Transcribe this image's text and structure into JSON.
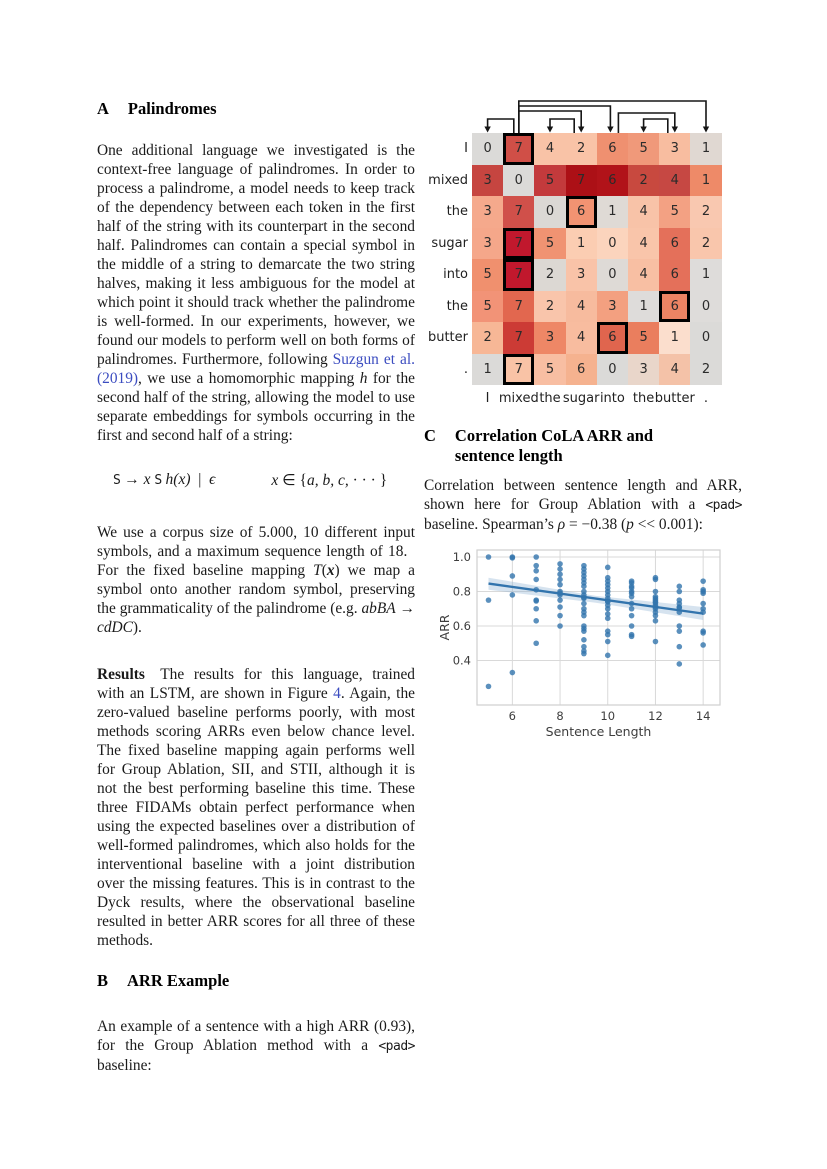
{
  "sections": {
    "a": {
      "label": "A",
      "title": "Palindromes"
    },
    "b": {
      "label": "B",
      "title": "ARR Example"
    },
    "c": {
      "label": "C",
      "title": "Correlation CoLA ARR and sentence length"
    }
  },
  "para_a1": [
    {
      "t": "One additional language we investigated is the context-free language of palindromes. In order to process a palindrome, a model needs to keep track of the dependency between each token in the first half of the string with its counterpart in the second half. Palindromes can contain a special symbol in the middle of a string to demarcate the two string halves, making it less ambiguous for the model at which point it should track whether the palindrome is well-formed. In our experiments, however, we found our models to perform well on both forms of palindromes. Furthermore, following ",
      "s": ""
    },
    {
      "t": "Suzgun et al. (2019)",
      "s": "link"
    },
    {
      "t": ", we use a homomorphic mapping ",
      "s": ""
    },
    {
      "t": "h",
      "s": "it"
    },
    {
      "t": " for the second half of the string, allowing the model to use separate embeddings for symbols occurring in the first and second half of a string:",
      "s": ""
    }
  ],
  "formula": {
    "left": [
      {
        "t": "S",
        "s": "mono"
      },
      {
        "t": " → ",
        "s": ""
      },
      {
        "t": "x",
        "s": "it"
      },
      {
        "t": " ",
        "s": ""
      },
      {
        "t": "S",
        "s": "mono"
      },
      {
        "t": " ",
        "s": ""
      },
      {
        "t": "h(x)",
        "s": "it"
      },
      {
        "t": " | ",
        "s": ""
      },
      {
        "t": "ϵ",
        "s": "it"
      }
    ],
    "right": [
      {
        "t": "x",
        "s": "it"
      },
      {
        "t": " ∈ {",
        "s": ""
      },
      {
        "t": "a, b, c,",
        "s": "it"
      },
      {
        "t": " · · · }",
        "s": ""
      }
    ]
  },
  "para_a2": [
    {
      "t": "We use a corpus size of 5.000, 10 different input symbols, and a maximum sequence length of 18. For the fixed baseline mapping ",
      "s": ""
    },
    {
      "t": "T",
      "s": "it"
    },
    {
      "t": "(",
      "s": ""
    },
    {
      "t": "x",
      "s": "boldit"
    },
    {
      "t": ") we map a symbol onto another random symbol, preserving the grammaticality of the palindrome (e.g. ",
      "s": ""
    },
    {
      "t": "abBA",
      "s": "it"
    },
    {
      "t": " → ",
      "s": ""
    },
    {
      "t": "cdDC",
      "s": "it"
    },
    {
      "t": ").",
      "s": ""
    }
  ],
  "para_results": [
    {
      "t": "Results",
      "s": "bold"
    },
    {
      "t": " The results for this language, trained with an LSTM, are shown in Figure ",
      "s": ""
    },
    {
      "t": "4",
      "s": "link"
    },
    {
      "t": ". Again, the zero-valued baseline performs poorly, with most methods scoring ARRs even below chance level. The fixed baseline mapping again performs well for Group Ablation, SII, and STII, although it is not the best performing baseline this time. These three FIDAMs obtain perfect performance when using the expected baselines over a distribution of well-formed palindromes, which also holds for the interventional baseline with a joint distribution over the missing features. This is in contrast to the Dyck results, where the observational baseline resulted in better ARR scores for all three of these methods.",
      "s": ""
    }
  ],
  "para_b1": [
    {
      "t": "An example of a sentence with a high ARR (0.93), for the Group Ablation method with a ",
      "s": ""
    },
    {
      "t": "<pad>",
      "s": "mono"
    },
    {
      "t": " baseline:",
      "s": ""
    }
  ],
  "para_c1": [
    {
      "t": "Correlation between sentence length and ARR, shown here for Group Ablation with a ",
      "s": ""
    },
    {
      "t": "<pad>",
      "s": "mono"
    },
    {
      "t": " baseline. Spearman’s ",
      "s": ""
    },
    {
      "t": "ρ",
      "s": "it"
    },
    {
      "t": " = −0.38 (",
      "s": ""
    },
    {
      "t": "p",
      "s": "it"
    },
    {
      "t": " << 0.001):",
      "s": ""
    }
  ],
  "heatmap": {
    "row_labels": [
      "I",
      "mixed",
      "the",
      "sugar",
      "into",
      "the",
      "butter",
      "."
    ],
    "col_labels": [
      "I",
      "mixed",
      "the",
      "sugar",
      "into",
      "the",
      "butter",
      "."
    ],
    "values": [
      [
        0,
        7,
        4,
        2,
        6,
        5,
        3,
        1
      ],
      [
        3,
        0,
        5,
        7,
        6,
        2,
        4,
        1
      ],
      [
        3,
        7,
        0,
        6,
        1,
        4,
        5,
        2
      ],
      [
        3,
        7,
        5,
        1,
        0,
        4,
        6,
        2
      ],
      [
        5,
        7,
        2,
        3,
        0,
        4,
        6,
        1
      ],
      [
        5,
        7,
        2,
        4,
        3,
        1,
        6,
        0
      ],
      [
        2,
        7,
        3,
        4,
        6,
        5,
        1,
        0
      ],
      [
        1,
        7,
        5,
        6,
        0,
        3,
        4,
        2
      ]
    ],
    "cell_colors": [
      [
        "#dbdad8",
        "#d04f47",
        "#f9c3a7",
        "#f9c3a7",
        "#ef9070",
        "#f0997a",
        "#f8bda0",
        "#e0d8d2"
      ],
      [
        "#c64540",
        "#dbdad8",
        "#c33a3c",
        "#ac1016",
        "#b11319",
        "#c8493f",
        "#c64843",
        "#ee8a68"
      ],
      [
        "#f5a98c",
        "#d0504a",
        "#dbd8d4",
        "#f29372",
        "#dfdad5",
        "#f8c3a8",
        "#f3a183",
        "#f9c8b0"
      ],
      [
        "#f5a78a",
        "#c1182d",
        "#f09372",
        "#fbcdb2",
        "#fbd4bd",
        "#f9c5aa",
        "#e4705a",
        "#f9c6ac"
      ],
      [
        "#f0906e",
        "#c1182d",
        "#dcd8d3",
        "#f9c3a8",
        "#dedad6",
        "#f8bfa3",
        "#e4705a",
        "#dedcda"
      ],
      [
        "#f29377",
        "#e2674f",
        "#f9c5ab",
        "#f7bb9e",
        "#f3a080",
        "#dedcda",
        "#ec8464",
        "#dedcda"
      ],
      [
        "#f7b796",
        "#cc3b35",
        "#ee8766",
        "#f8bc9f",
        "#e0654e",
        "#ea7e5e",
        "#fbdecd",
        "#dbdad8"
      ],
      [
        "#dbdad8",
        "#f9c3a6",
        "#f8bea2",
        "#f5b28f",
        "#dbdad8",
        "#e9d6ca",
        "#f4c2a8",
        "#dbdad8"
      ]
    ],
    "highlight_cells": [
      [
        0,
        1
      ],
      [
        2,
        3
      ],
      [
        3,
        1
      ],
      [
        4,
        1
      ],
      [
        5,
        6
      ],
      [
        6,
        4
      ],
      [
        7,
        1
      ]
    ],
    "arcs": [
      {
        "source": 2,
        "target": 8,
        "y": 11,
        "sdx": 0,
        "tdx": 0
      },
      {
        "source": 2,
        "target": 5,
        "y": 16,
        "sdx": 0,
        "tdx": -2
      },
      {
        "source": 2,
        "target": 4,
        "y": 21,
        "sdx": 0,
        "tdx": 0
      },
      {
        "source": 5,
        "target": 7,
        "y": 23,
        "sdx": 6,
        "tdx": 0
      },
      {
        "source": 2,
        "target": 1,
        "y": 29,
        "sdx": -5,
        "tdx": 0
      },
      {
        "source": 4,
        "target": 3,
        "y": 29,
        "sdx": -7,
        "tdx": 0
      },
      {
        "source": 7,
        "target": 6,
        "y": 29,
        "sdx": -7,
        "tdx": 0
      }
    ],
    "arc_color": "#161616"
  },
  "chart_data": {
    "type": "scatter",
    "xlabel": "Sentence Length",
    "ylabel": "ARR",
    "xticks": [
      6,
      8,
      10,
      12,
      14
    ],
    "yticks": [
      0.4,
      0.6,
      0.8,
      1.0
    ],
    "xlim": [
      4.5,
      14.8
    ],
    "ylim": [
      0.14,
      1.04
    ],
    "grid": true,
    "point_color": "#3274ad",
    "line_color": "#3274ad",
    "band_color": "#89aed0",
    "grid_color": "#d9d9d9",
    "regression_line": {
      "x1": 5,
      "y1": 0.846,
      "x2": 14,
      "y2": 0.672
    },
    "band": {
      "upper": [
        [
          5,
          0.88
        ],
        [
          9.5,
          0.775
        ],
        [
          14,
          0.71
        ]
      ],
      "lower": [
        [
          14,
          0.635
        ],
        [
          9.5,
          0.735
        ],
        [
          5,
          0.81
        ]
      ]
    },
    "points": [
      [
        5,
        1.0
      ],
      [
        5,
        0.75
      ],
      [
        5,
        0.25
      ],
      [
        6,
        1.0
      ],
      [
        6,
        0.995
      ],
      [
        6,
        0.89
      ],
      [
        6,
        0.78
      ],
      [
        6,
        0.33
      ],
      [
        7,
        1.0
      ],
      [
        7,
        0.95
      ],
      [
        7,
        0.92
      ],
      [
        7,
        0.87
      ],
      [
        7,
        0.81
      ],
      [
        7,
        0.75
      ],
      [
        7,
        0.745
      ],
      [
        7,
        0.7
      ],
      [
        7,
        0.63
      ],
      [
        7,
        0.5
      ],
      [
        8,
        0.96
      ],
      [
        8,
        0.93
      ],
      [
        8,
        0.9
      ],
      [
        8,
        0.87
      ],
      [
        8,
        0.84
      ],
      [
        8,
        0.8
      ],
      [
        8,
        0.79
      ],
      [
        8,
        0.78
      ],
      [
        8,
        0.75
      ],
      [
        8,
        0.71
      ],
      [
        8,
        0.66
      ],
      [
        8,
        0.6
      ],
      [
        9,
        0.95
      ],
      [
        9,
        0.93
      ],
      [
        9,
        0.91
      ],
      [
        9,
        0.89
      ],
      [
        9,
        0.87
      ],
      [
        9,
        0.85
      ],
      [
        9,
        0.83
      ],
      [
        9,
        0.8
      ],
      [
        9,
        0.78
      ],
      [
        9,
        0.765
      ],
      [
        9,
        0.76
      ],
      [
        9,
        0.73
      ],
      [
        9,
        0.7
      ],
      [
        9,
        0.68
      ],
      [
        9,
        0.66
      ],
      [
        9,
        0.6
      ],
      [
        9,
        0.585
      ],
      [
        9,
        0.57
      ],
      [
        9,
        0.52
      ],
      [
        9,
        0.48
      ],
      [
        9,
        0.455
      ],
      [
        9,
        0.44
      ],
      [
        10,
        0.94
      ],
      [
        10,
        0.88
      ],
      [
        10,
        0.86
      ],
      [
        10,
        0.84
      ],
      [
        10,
        0.82
      ],
      [
        10,
        0.8
      ],
      [
        10,
        0.78
      ],
      [
        10,
        0.76
      ],
      [
        10,
        0.745
      ],
      [
        10,
        0.74
      ],
      [
        10,
        0.72
      ],
      [
        10,
        0.7
      ],
      [
        10,
        0.67
      ],
      [
        10,
        0.645
      ],
      [
        10,
        0.57
      ],
      [
        10,
        0.55
      ],
      [
        10,
        0.51
      ],
      [
        10,
        0.43
      ],
      [
        11,
        0.86
      ],
      [
        11,
        0.85
      ],
      [
        11,
        0.83
      ],
      [
        11,
        0.82
      ],
      [
        11,
        0.8
      ],
      [
        11,
        0.79
      ],
      [
        11,
        0.77
      ],
      [
        11,
        0.73
      ],
      [
        11,
        0.7
      ],
      [
        11,
        0.66
      ],
      [
        11,
        0.6
      ],
      [
        11,
        0.55
      ],
      [
        11,
        0.54
      ],
      [
        12,
        0.88
      ],
      [
        12,
        0.87
      ],
      [
        12,
        0.8
      ],
      [
        12,
        0.77
      ],
      [
        12,
        0.76
      ],
      [
        12,
        0.75
      ],
      [
        12,
        0.74
      ],
      [
        12,
        0.735
      ],
      [
        12,
        0.72
      ],
      [
        12,
        0.71
      ],
      [
        12,
        0.7
      ],
      [
        12,
        0.68
      ],
      [
        12,
        0.66
      ],
      [
        12,
        0.63
      ],
      [
        12,
        0.51
      ],
      [
        13,
        0.83
      ],
      [
        13,
        0.8
      ],
      [
        13,
        0.75
      ],
      [
        13,
        0.73
      ],
      [
        13,
        0.71
      ],
      [
        13,
        0.705
      ],
      [
        13,
        0.68
      ],
      [
        13,
        0.6
      ],
      [
        13,
        0.57
      ],
      [
        13,
        0.48
      ],
      [
        13,
        0.38
      ],
      [
        14,
        0.86
      ],
      [
        14,
        0.81
      ],
      [
        14,
        0.8
      ],
      [
        14,
        0.79
      ],
      [
        14,
        0.73
      ],
      [
        14,
        0.7
      ],
      [
        14,
        0.68
      ],
      [
        14,
        0.57
      ],
      [
        14,
        0.56
      ],
      [
        14,
        0.49
      ]
    ]
  }
}
